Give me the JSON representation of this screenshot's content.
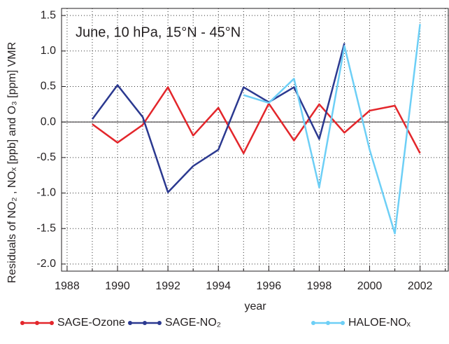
{
  "chart_data": {
    "type": "line",
    "title": "June,  10 hPa, 15°N - 45°N",
    "xlabel": "year",
    "ylabel": "Residuals of NO₂ , NOₓ [ppb] and O₃  [ppm] VMR",
    "x": [
      1989,
      1990,
      1991,
      1992,
      1993,
      1994,
      1995,
      1996,
      1997,
      1998,
      1999,
      2000,
      2001,
      2002
    ],
    "series": [
      {
        "name": "SAGE-Ozone",
        "color": "#e3262b",
        "values": [
          -0.03,
          -0.29,
          -0.04,
          0.49,
          -0.19,
          0.2,
          -0.44,
          0.26,
          -0.26,
          0.25,
          -0.15,
          0.16,
          0.23,
          -0.44
        ]
      },
      {
        "name": "SAGE-NO₂",
        "color": "#2b3990",
        "values": [
          0.04,
          0.52,
          0.07,
          -0.99,
          -0.62,
          -0.39,
          0.49,
          0.28,
          0.49,
          -0.24,
          1.11,
          null,
          null,
          null
        ]
      },
      {
        "name": "HALOE-NOₓ",
        "color": "#6dcff6",
        "values": [
          null,
          null,
          null,
          null,
          null,
          null,
          0.38,
          0.27,
          0.61,
          -0.92,
          1.07,
          -0.39,
          -1.57,
          1.38
        ]
      }
    ],
    "xlim": [
      1987.78,
      2003.12
    ],
    "ylim": [
      -2.1,
      1.6
    ],
    "xticks": [
      1988,
      1990,
      1992,
      1994,
      1996,
      1998,
      2000,
      2002
    ],
    "xminorticks": [
      1989,
      1991,
      1993,
      1995,
      1997,
      1999,
      2001,
      2003
    ],
    "yticks": [
      {
        "value": -2,
        "label": "-2.0"
      },
      -1.5,
      {
        "value": -1,
        "label": "-1.0"
      },
      -0.5,
      {
        "value": 0,
        "label": "0.0"
      },
      0.5,
      {
        "value": 1,
        "label": "1.0"
      },
      1.5
    ],
    "grid": true,
    "legend": "bottom"
  }
}
